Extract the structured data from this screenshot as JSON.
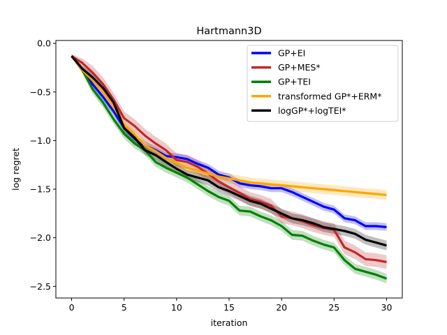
{
  "chart_data": {
    "type": "line",
    "title": "Hartmann3D",
    "xlabel": "iteration",
    "ylabel": "log regret",
    "xlim": [
      -1.5,
      31.5
    ],
    "ylim": [
      -2.62,
      0.03
    ],
    "xticks": [
      0,
      5,
      10,
      15,
      20,
      25,
      30
    ],
    "yticks": [
      0.0,
      -0.5,
      -1.0,
      -1.5,
      -2.0,
      -2.5
    ],
    "ytick_labels": [
      "0.0",
      "−0.5",
      "−1.0",
      "−1.5",
      "−2.0",
      "−2.5"
    ],
    "grid": false,
    "legend_position": "top-right",
    "x": [
      0,
      1,
      2,
      3,
      4,
      5,
      6,
      7,
      8,
      9,
      10,
      11,
      12,
      13,
      14,
      15,
      16,
      17,
      18,
      19,
      20,
      21,
      22,
      23,
      24,
      25,
      26,
      27,
      28,
      29,
      30
    ],
    "series": [
      {
        "name": "GP+EI",
        "color": "#0000ff",
        "values": [
          -0.13,
          -0.27,
          -0.42,
          -0.55,
          -0.7,
          -0.87,
          -0.98,
          -1.05,
          -1.1,
          -1.16,
          -1.17,
          -1.19,
          -1.24,
          -1.28,
          -1.35,
          -1.38,
          -1.44,
          -1.46,
          -1.47,
          -1.49,
          -1.49,
          -1.53,
          -1.58,
          -1.63,
          -1.68,
          -1.71,
          -1.8,
          -1.82,
          -1.88,
          -1.88,
          -1.89
        ],
        "band": 0.04
      },
      {
        "name": "GP+MES*",
        "color": "#c0282a",
        "values": [
          -0.13,
          -0.2,
          -0.3,
          -0.42,
          -0.58,
          -0.77,
          -0.85,
          -0.95,
          -1.03,
          -1.1,
          -1.2,
          -1.22,
          -1.27,
          -1.34,
          -1.42,
          -1.48,
          -1.54,
          -1.6,
          -1.63,
          -1.67,
          -1.78,
          -1.8,
          -1.83,
          -1.87,
          -1.9,
          -1.92,
          -2.1,
          -2.15,
          -2.22,
          -2.23,
          -2.25
        ],
        "band": 0.07
      },
      {
        "name": "GP+TEI",
        "color": "#008000",
        "values": [
          -0.13,
          -0.27,
          -0.47,
          -0.61,
          -0.78,
          -0.93,
          -1.03,
          -1.1,
          -1.22,
          -1.28,
          -1.33,
          -1.38,
          -1.45,
          -1.52,
          -1.58,
          -1.62,
          -1.72,
          -1.73,
          -1.78,
          -1.82,
          -1.88,
          -1.97,
          -1.98,
          -2.03,
          -2.07,
          -2.1,
          -2.23,
          -2.32,
          -2.35,
          -2.38,
          -2.42
        ],
        "band": 0.05
      },
      {
        "name": "transformed GP*+ERM*",
        "color": "#ffa500",
        "values": [
          -0.13,
          -0.27,
          -0.38,
          -0.5,
          -0.65,
          -0.84,
          -0.94,
          -1.05,
          -1.11,
          -1.18,
          -1.23,
          -1.28,
          -1.31,
          -1.34,
          -1.37,
          -1.39,
          -1.41,
          -1.43,
          -1.44,
          -1.45,
          -1.46,
          -1.47,
          -1.48,
          -1.49,
          -1.5,
          -1.51,
          -1.52,
          -1.53,
          -1.54,
          -1.55,
          -1.56
        ],
        "band": 0.05
      },
      {
        "name": "logGP*+logTEI*",
        "color": "#000000",
        "values": [
          -0.13,
          -0.26,
          -0.35,
          -0.46,
          -0.61,
          -0.87,
          -0.97,
          -1.1,
          -1.15,
          -1.22,
          -1.29,
          -1.35,
          -1.38,
          -1.41,
          -1.48,
          -1.52,
          -1.57,
          -1.62,
          -1.65,
          -1.7,
          -1.75,
          -1.8,
          -1.82,
          -1.85,
          -1.89,
          -1.91,
          -1.93,
          -1.96,
          -2.02,
          -2.05,
          -2.08
        ],
        "band": 0.05
      }
    ]
  }
}
